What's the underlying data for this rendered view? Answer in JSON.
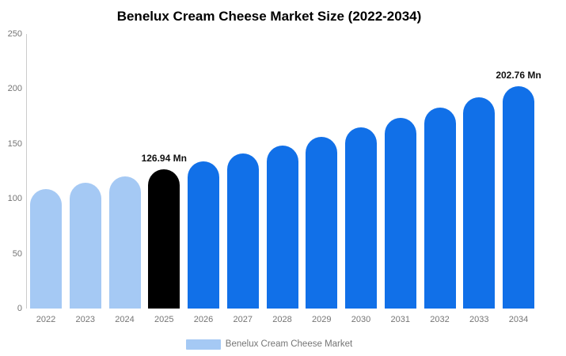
{
  "title": "Benelux Cream Cheese Market Size (2022-2034)",
  "legend": {
    "label": "Benelux Cream Cheese Market",
    "swatch_color": "#A5C9F4"
  },
  "colors": {
    "historical_bar": "#A5C9F4",
    "base_year_bar": "#000000",
    "forecast_bar": "#1170E8",
    "axis_line": "#cccccc",
    "tick_text": "#757575",
    "value_label_text": "#111111"
  },
  "y_axis": {
    "ticks": [
      0,
      50,
      100,
      150,
      200,
      250
    ],
    "max": 250
  },
  "chart_data": {
    "type": "bar",
    "title": "Benelux Cream Cheese Market Size (2022-2034)",
    "categories": [
      "2022",
      "2023",
      "2024",
      "2025",
      "2026",
      "2027",
      "2028",
      "2029",
      "2030",
      "2031",
      "2032",
      "2033",
      "2034"
    ],
    "values": [
      108.62,
      114.42,
      120.53,
      126.94,
      133.72,
      140.86,
      148.38,
      156.31,
      164.66,
      173.45,
      182.71,
      192.47,
      202.76
    ],
    "unit": "Mn",
    "xlabel": "",
    "ylabel": "",
    "ylim": [
      0,
      250
    ],
    "grid": false,
    "legend_position": "bottom",
    "legend_entries": [
      "Benelux Cream Cheese Market"
    ],
    "bar_colors": [
      "#A5C9F4",
      "#A5C9F4",
      "#A5C9F4",
      "#000000",
      "#1170E8",
      "#1170E8",
      "#1170E8",
      "#1170E8",
      "#1170E8",
      "#1170E8",
      "#1170E8",
      "#1170E8",
      "#1170E8"
    ],
    "annotations": [
      {
        "category": "2025",
        "text": "126.94 Mn"
      },
      {
        "category": "2034",
        "text": "202.76 Mn"
      }
    ]
  }
}
